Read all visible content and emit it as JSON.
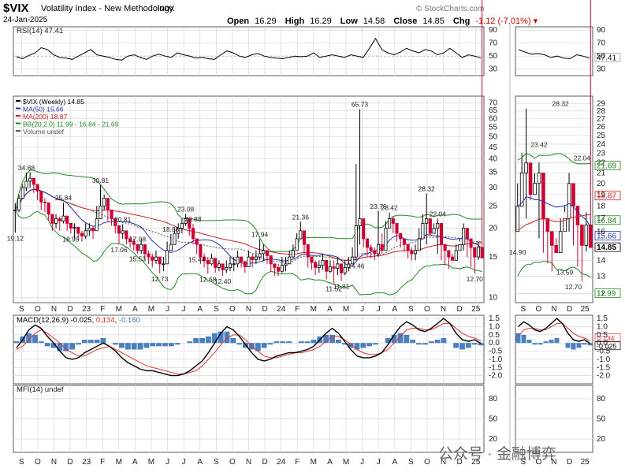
{
  "header": {
    "symbol": "$VIX",
    "description": "Volatility Index - New Methodology",
    "exchange": "INDX",
    "date": "24-Jan-2025",
    "open_label": "Open",
    "open": "16.29",
    "high_label": "High",
    "high": "16.29",
    "low_label": "Low",
    "low": "14.58",
    "close_label": "Close",
    "close": "14.85",
    "chg_label": "Chg",
    "chg": "-1.12 (-7.01%) ▾",
    "watermark": "© StockCharts.com"
  },
  "watermark2": "公众号 · 金融博弈",
  "colors": {
    "up": "#000000",
    "down": "#cc0033",
    "ma50": "#2233aa",
    "ma200": "#cc2222",
    "bb": "#228822",
    "macd": "#000000",
    "signal": "#dd3333",
    "hist": "#4a7fc0",
    "grid": "#d8d8d8"
  },
  "chart_data": [
    {
      "type": "line",
      "title": "RSI(14) 47.41",
      "series": [
        {
          "name": "RSI(14)",
          "values": [
            49,
            46,
            51,
            55,
            63,
            60,
            52,
            48,
            47,
            45,
            50,
            55,
            60,
            52,
            50,
            48,
            45,
            44,
            50,
            52,
            48,
            45,
            50,
            53,
            50,
            48,
            55,
            52,
            50,
            47,
            48,
            46,
            45,
            52,
            58,
            55,
            50,
            48,
            52,
            54,
            50,
            48,
            47,
            46,
            48,
            50,
            49,
            50,
            55,
            48,
            50,
            52,
            50,
            48,
            52,
            50,
            48,
            62,
            77,
            60,
            55,
            52,
            56,
            62,
            58,
            55,
            60,
            58,
            52,
            55,
            62,
            55,
            48,
            52,
            50,
            47
          ]
        }
      ],
      "ylim": [
        20,
        95
      ],
      "yticks": [
        30,
        50,
        70,
        90
      ],
      "right_panel_values": [
        60,
        56,
        53,
        54,
        52,
        48,
        50,
        47,
        46,
        52,
        50,
        47
      ],
      "last_value": "47.41"
    },
    {
      "type": "candlestick",
      "title": "$VIX (Weekly) 14.85",
      "log_scale": true,
      "ylim": [
        9.5,
        75
      ],
      "yticks": [
        10,
        12,
        13,
        14,
        15,
        16,
        17,
        18,
        19,
        20,
        21,
        22,
        23,
        24,
        25,
        26,
        27,
        28,
        29,
        30,
        35,
        40,
        45,
        50,
        55,
        60,
        65,
        70
      ],
      "main_yticks": [
        "10",
        "15",
        "20",
        "25",
        "30",
        "35",
        "40",
        "45",
        "50",
        "55",
        "60",
        "65",
        "70"
      ],
      "legend": [
        {
          "name": "$VIX (Weekly) 14.85",
          "color": "#000000"
        },
        {
          "name": "MA(50) 15.66",
          "color": "#2233aa"
        },
        {
          "name": "MA(200) 18.87",
          "color": "#cc2222"
        },
        {
          "name": "BB(20,2.0) 11.99 - 16.84 - 21.69",
          "color": "#228822"
        },
        {
          "name": "Volume undef",
          "color": "#555555"
        }
      ],
      "x_labels": [
        "S",
        "O",
        "N",
        "D",
        "23",
        "F",
        "M",
        "A",
        "M",
        "J",
        "J",
        "A",
        "S",
        "O",
        "N",
        "D",
        "24",
        "F",
        "M",
        "A",
        "M",
        "J",
        "J",
        "A",
        "S",
        "O",
        "N",
        "D",
        "25"
      ],
      "series": [
        {
          "name": "$VIX",
          "closes": [
            24,
            27,
            30,
            32,
            33,
            31,
            29,
            26,
            25.8,
            23,
            21,
            22,
            21.5,
            22.6,
            21,
            20,
            20.2,
            19,
            18.5,
            19.5,
            20,
            19.5,
            22,
            25,
            27,
            24,
            22,
            20.5,
            19,
            19.5,
            18,
            17.5,
            17,
            16,
            17,
            15.5,
            15,
            14.5,
            15,
            14,
            14,
            16,
            17,
            19,
            20,
            21,
            22,
            20,
            18,
            17,
            15,
            14.5,
            14,
            14.8,
            13.5,
            14,
            13.2,
            13.5,
            14,
            14,
            15,
            14.3,
            13.6,
            15,
            14.6,
            15,
            15.5,
            16,
            15.2,
            14,
            13.5,
            13,
            13.8,
            14,
            15,
            16,
            18,
            19.5,
            17,
            15,
            14.2,
            13.5,
            13.8,
            14.5,
            13,
            13.6,
            13.4,
            14,
            12.8,
            13.5,
            14,
            15,
            20.5,
            22,
            18,
            16.5,
            16,
            15.5,
            17,
            16,
            20,
            22,
            21,
            19,
            18,
            17,
            16,
            15.5,
            16,
            18,
            21,
            22,
            19,
            20,
            21,
            17,
            16,
            15,
            14.5,
            16,
            17,
            20,
            18,
            16.5,
            15,
            16.5,
            14.85
          ]
        }
      ],
      "highs": [
        25.7,
        28,
        31,
        34.88,
        35,
        33,
        30.5,
        27.5,
        27,
        24,
        22.5,
        23,
        22.5,
        25.84,
        22,
        21,
        21,
        20,
        19.5,
        21,
        21,
        20.5,
        25,
        30.81,
        28,
        25.5,
        23,
        21.5,
        20,
        20.81,
        19,
        18.5,
        18,
        17.08,
        18,
        16.5,
        16,
        15.5,
        16,
        15,
        15,
        17.5,
        18.88,
        20,
        21,
        22,
        23.08,
        21,
        20.88,
        18,
        16,
        15.5,
        15,
        15.5,
        14.5,
        14.5,
        14,
        14.5,
        15,
        15,
        16,
        15,
        14.5,
        16,
        15.5,
        16,
        17.94,
        17,
        16,
        15,
        14,
        14,
        15,
        15,
        16,
        17,
        19,
        21.36,
        19,
        16,
        15,
        14.5,
        14.5,
        15.5,
        14,
        14.5,
        14.5,
        15,
        13.8,
        14.5,
        15,
        16.5,
        38,
        65.73,
        21,
        18,
        17,
        16.5,
        23.76,
        19,
        21.5,
        23.42,
        22.5,
        20,
        19,
        18,
        17,
        16.5,
        17,
        20,
        23,
        28.32,
        21,
        21,
        22.04,
        18,
        17,
        16,
        15.5,
        17,
        18,
        21,
        19,
        17.5,
        16.5,
        17.5,
        16.29
      ],
      "lows": [
        19.12,
        23.5,
        27,
        29,
        30,
        28.5,
        26.5,
        24,
        23.5,
        21.5,
        19.5,
        20,
        19.5,
        21,
        19.5,
        18.95,
        18,
        17.8,
        17.5,
        18,
        18.5,
        18,
        19.5,
        22,
        24,
        21.5,
        20.5,
        19,
        17.06,
        18,
        17,
        16.5,
        16,
        15.53,
        15.5,
        14.5,
        14,
        13.5,
        14,
        12.73,
        13,
        14.5,
        16,
        17.5,
        18,
        19,
        20.5,
        18.5,
        17,
        15.44,
        14,
        13.5,
        12.68,
        13.8,
        12.8,
        13,
        12.4,
        12.8,
        13,
        13,
        13.5,
        13.5,
        12.8,
        13.8,
        13.5,
        14,
        14.5,
        14.5,
        14,
        13,
        12.4,
        12.4,
        12.8,
        13,
        14,
        14.8,
        16.5,
        18,
        15.5,
        13.5,
        13.2,
        12.5,
        12.8,
        13.2,
        12,
        12.8,
        11.52,
        12.5,
        11.81,
        12.5,
        13,
        14,
        14.46,
        17,
        16.5,
        15,
        14.8,
        14.5,
        15,
        15.5,
        18,
        20.5,
        19,
        17.5,
        16.5,
        15.8,
        14.8,
        14.5,
        14.5,
        16,
        19,
        17,
        18.5,
        19,
        15.5,
        14.5,
        13.8,
        13.3,
        14.5,
        15.5,
        17.5,
        16,
        15,
        13.59,
        12.7,
        14.58
      ],
      "annotations": [
        {
          "text": "34.88",
          "value": 34.88
        },
        {
          "text": "25.84",
          "value": 25.84
        },
        {
          "text": "19.12",
          "value": 19.12
        },
        {
          "text": "18.95",
          "value": 18.95
        },
        {
          "text": "30.81",
          "value": 30.81
        },
        {
          "text": "17.06",
          "value": 17.06
        },
        {
          "text": "20.81",
          "value": 20.81
        },
        {
          "text": "15.53",
          "value": 15.53
        },
        {
          "text": "17.08",
          "value": 17.08
        },
        {
          "text": "12.73",
          "value": 12.73
        },
        {
          "text": "18.88",
          "value": 18.88
        },
        {
          "text": "12.68",
          "value": 12.68
        },
        {
          "text": "23.08",
          "value": 23.08
        },
        {
          "text": "20.88",
          "value": 20.88
        },
        {
          "text": "15.44",
          "value": 15.44
        },
        {
          "text": "11.81",
          "value": 11.81
        },
        {
          "text": "17.94",
          "value": 17.94
        },
        {
          "text": "12.40",
          "value": 12.4
        },
        {
          "text": "21.36",
          "value": 21.36
        },
        {
          "text": "11.52",
          "value": 11.52
        },
        {
          "text": "65.73",
          "value": 65.73
        },
        {
          "text": "23.76",
          "value": 23.76
        },
        {
          "text": "14.46",
          "value": 14.46
        },
        {
          "text": "23.42",
          "value": 23.42
        },
        {
          "text": "28.32",
          "value": 28.32
        },
        {
          "text": "22.04",
          "value": 22.04
        },
        {
          "text": "12.70",
          "value": 12.7
        }
      ],
      "right_panel": {
        "y_labels": [
          "11.99",
          "12",
          "13",
          "14",
          "14.85",
          "15.66",
          "16",
          "16.84",
          "17",
          "18",
          "18.87",
          "19",
          "20",
          "21",
          "21.69",
          "22",
          "23",
          "24",
          "25",
          "26",
          "27",
          "28",
          "29"
        ],
        "highlight_labels": [
          {
            "text": "21.69",
            "color": "#228822"
          },
          {
            "text": "18.87",
            "color": "#cc2222"
          },
          {
            "text": "16.84",
            "color": "#228822"
          },
          {
            "text": "15.66",
            "color": "#2233aa"
          },
          {
            "text": "14.85",
            "color": "#000000"
          },
          {
            "text": "11.99",
            "color": "#228822"
          }
        ],
        "annotations": [
          "14.90",
          "23.42",
          "28.32",
          "22.04",
          "13.59",
          "12.70"
        ],
        "x_labels": [
          "S",
          "O",
          "N",
          "D",
          "25"
        ]
      }
    },
    {
      "type": "line",
      "title": "MACD(12,26,9) -0.025, 0.134, -0.160",
      "title_parts": [
        {
          "text": "MACD(12,26,9) -0.025, ",
          "color": "#000000"
        },
        {
          "text": "0.134",
          "color": "#dd3333"
        },
        {
          "text": ", ",
          "color": "#000000"
        },
        {
          "text": "-0.160",
          "color": "#4a7fc0"
        }
      ],
      "ylim": [
        -2.5,
        1.7
      ],
      "yticks": [
        "1.5",
        "1.0",
        "0.5",
        "0.0",
        "-0.5",
        "-1.0",
        "-1.5",
        "-2.0"
      ],
      "series": [
        {
          "name": "MACD",
          "values": [
            -0.3,
            0.2,
            0.8,
            1.1,
            0.9,
            0.4,
            0,
            -0.5,
            -0.9,
            -1.0,
            -0.9,
            -0.6,
            -0.4,
            -0.2,
            0,
            -0.2,
            -0.5,
            -0.9,
            -1.2,
            -1.4,
            -1.6,
            -1.7,
            -1.7,
            -1.8,
            -1.9,
            -2.0,
            -2.0,
            -1.9,
            -1.7,
            -1.4,
            -1.1,
            -0.6,
            0,
            0.6,
            1.0,
            0.8,
            0.4,
            -0.1,
            -0.6,
            -1.0,
            -1.1,
            -1.0,
            -0.8,
            -0.7,
            -0.6,
            -0.6,
            -0.5,
            -0.4,
            -0.2,
            0.2,
            0.6,
            0.9,
            0.6,
            0.1,
            -0.4,
            -0.8,
            -0.9,
            -0.9,
            -0.8,
            -0.6,
            -0.1,
            0.5,
            1.0,
            1.3,
            1.1,
            0.8,
            0.7,
            0.9,
            1.2,
            1.5,
            1.2,
            0.6,
            0.2,
            0.1,
            0.2,
            -0.02
          ]
        },
        {
          "name": "Signal",
          "values": [
            -0.4,
            -0.2,
            0.2,
            0.6,
            0.8,
            0.6,
            0.3,
            0,
            -0.4,
            -0.6,
            -0.8,
            -0.8,
            -0.6,
            -0.4,
            -0.3,
            -0.2,
            -0.4,
            -0.6,
            -0.8,
            -1.0,
            -1.2,
            -1.4,
            -1.5,
            -1.6,
            -1.7,
            -1.8,
            -1.9,
            -1.9,
            -1.8,
            -1.7,
            -1.4,
            -1.0,
            -0.6,
            -0.1,
            0.3,
            0.5,
            0.5,
            0.2,
            -0.2,
            -0.5,
            -0.8,
            -0.9,
            -0.9,
            -0.8,
            -0.7,
            -0.6,
            -0.6,
            -0.5,
            -0.4,
            -0.2,
            0.1,
            0.4,
            0.4,
            0.2,
            -0.1,
            -0.4,
            -0.6,
            -0.7,
            -0.7,
            -0.6,
            -0.4,
            0,
            0.4,
            0.8,
            0.9,
            0.9,
            0.8,
            0.8,
            1.0,
            1.2,
            1.2,
            0.9,
            0.6,
            0.4,
            0.3,
            0.13
          ]
        }
      ],
      "right_panel_labels": [
        "0.134",
        "-0.025"
      ]
    },
    {
      "type": "line",
      "title": "MFI(14) undef",
      "yticks": [
        "20",
        "50",
        "80"
      ]
    }
  ]
}
